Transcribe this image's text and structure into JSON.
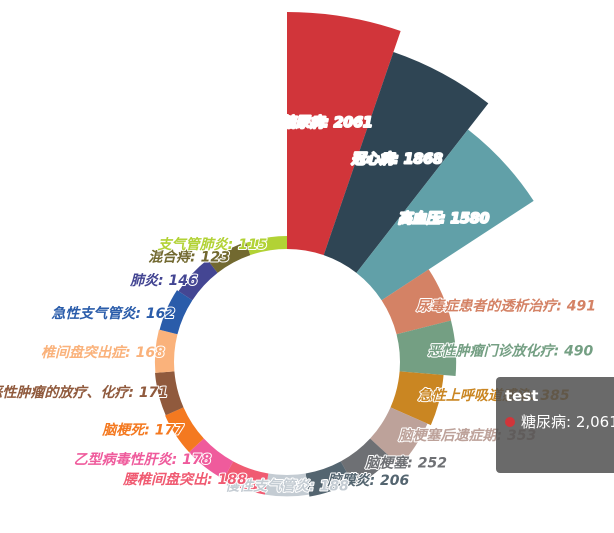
{
  "chart_data": {
    "type": "pie",
    "roseType": "area",
    "series_name": "test",
    "slices": [
      {
        "name": "糖尿病",
        "value": 2061,
        "color": "#d1353a"
      },
      {
        "name": "冠心病",
        "value": 1868,
        "color": "#2f4554"
      },
      {
        "name": "高血压",
        "value": 1580,
        "color": "#61a0a8"
      },
      {
        "name": "尿毒症患者的透析治疗",
        "value": 491,
        "color": "#d48265"
      },
      {
        "name": "恶性肿瘤门诊放化疗",
        "value": 490,
        "color": "#749f83"
      },
      {
        "name": "急性上呼吸道感染",
        "value": 385,
        "color": "#ca8622"
      },
      {
        "name": "脑梗塞后遗症期",
        "value": 353,
        "color": "#bda29a"
      },
      {
        "name": "脑梗塞",
        "value": 252,
        "color": "#6e7074"
      },
      {
        "name": "脑膜炎",
        "value": 206,
        "color": "#546570"
      },
      {
        "name": "慢性支气管炎",
        "value": 188,
        "color": "#c4ccd3"
      },
      {
        "name": "腰椎间盘突出",
        "value": 188,
        "color": "#f05b72"
      },
      {
        "name": "乙型病毒性肝炎",
        "value": 178,
        "color": "#ef5b9c"
      },
      {
        "name": "脑梗死",
        "value": 177,
        "color": "#f47920"
      },
      {
        "name": "恶性肿瘤的放疗、化疗",
        "value": 171,
        "color": "#905a3d"
      },
      {
        "name": "椎间盘突出症",
        "value": 168,
        "color": "#fab27b"
      },
      {
        "name": "急性支气管炎",
        "value": 162,
        "color": "#2a5caa"
      },
      {
        "name": "肺炎",
        "value": 146,
        "color": "#444693"
      },
      {
        "name": "混合痔",
        "value": 123,
        "color": "#726930"
      },
      {
        "name": "支气管肺炎",
        "value": 115,
        "color": "#b2d235"
      }
    ]
  },
  "tooltip": {
    "title": "test",
    "text": "糖尿病: 2,061",
    "dot_color": "#d1353a"
  }
}
